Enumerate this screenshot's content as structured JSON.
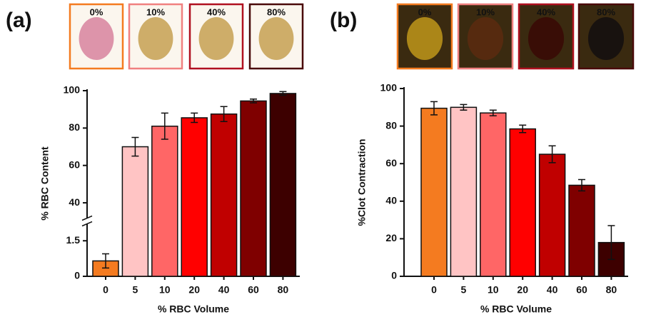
{
  "chart_data": [
    {
      "type": "bar",
      "panel": "(a)",
      "ylabel": "% RBC Content",
      "xlabel": "% RBC Volume",
      "images": [
        {
          "label": "0%",
          "color": "#f47b20"
        },
        {
          "label": "10%",
          "color": "#f08080"
        },
        {
          "label": "40%",
          "color": "#b01020"
        },
        {
          "label": "80%",
          "color": "#4a0a0a"
        }
      ],
      "categories": [
        "0",
        "5",
        "10",
        "20",
        "40",
        "60",
        "80"
      ],
      "values": [
        0.65,
        70,
        81,
        85.5,
        87.5,
        94.5,
        98.5
      ],
      "errors": [
        0.3,
        5,
        7,
        2.5,
        4,
        1,
        1
      ],
      "colors": [
        "#f47b20",
        "#ffc4c4",
        "#ff6666",
        "#ff0000",
        "#c00000",
        "#7f0000",
        "#3d0000"
      ],
      "ylim_segments": [
        [
          0,
          2.2
        ],
        [
          32,
          100
        ]
      ],
      "yticks": [
        0,
        1.5,
        40,
        60,
        80,
        100
      ]
    },
    {
      "type": "bar",
      "panel": "(b)",
      "ylabel": "%Clot Contraction",
      "xlabel": "% RBC Volume",
      "images": [
        {
          "label": "0%",
          "color": "#f47b20"
        },
        {
          "label": "10%",
          "color": "#f08080"
        },
        {
          "label": "40%",
          "color": "#b01020"
        },
        {
          "label": "80%",
          "color": "#4a0a0a"
        }
      ],
      "categories": [
        "0",
        "5",
        "10",
        "20",
        "40",
        "60",
        "80"
      ],
      "values": [
        89.5,
        90,
        87,
        78.5,
        65,
        48.5,
        18
      ],
      "errors": [
        3.5,
        1.5,
        1.5,
        2,
        4.5,
        3,
        9
      ],
      "colors": [
        "#f47b20",
        "#ffc4c4",
        "#ff6666",
        "#ff0000",
        "#c00000",
        "#7f0000",
        "#3d0000"
      ],
      "ylim": [
        0,
        100
      ],
      "yticks": [
        0,
        20,
        40,
        60,
        80,
        100
      ]
    }
  ]
}
